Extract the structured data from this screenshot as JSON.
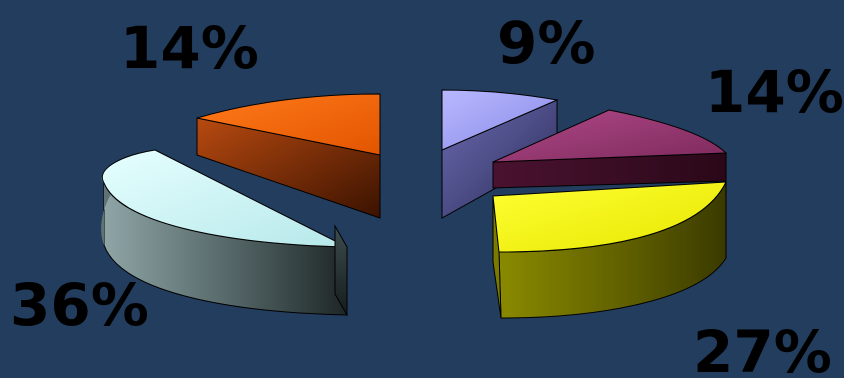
{
  "chart_data": {
    "type": "pie",
    "style": "3d-exploded",
    "slices": [
      {
        "label": "9%",
        "value": 9,
        "color": "#9c9cff"
      },
      {
        "label": "14%",
        "value": 14,
        "color": "#a23d78"
      },
      {
        "label": "27%",
        "value": 27,
        "color": "#ffff00"
      },
      {
        "label": "36%",
        "value": 36,
        "color": "#ccffff"
      },
      {
        "label": "14%",
        "value": 14,
        "color": "#ff6600"
      }
    ],
    "legend": "none",
    "title": ""
  }
}
